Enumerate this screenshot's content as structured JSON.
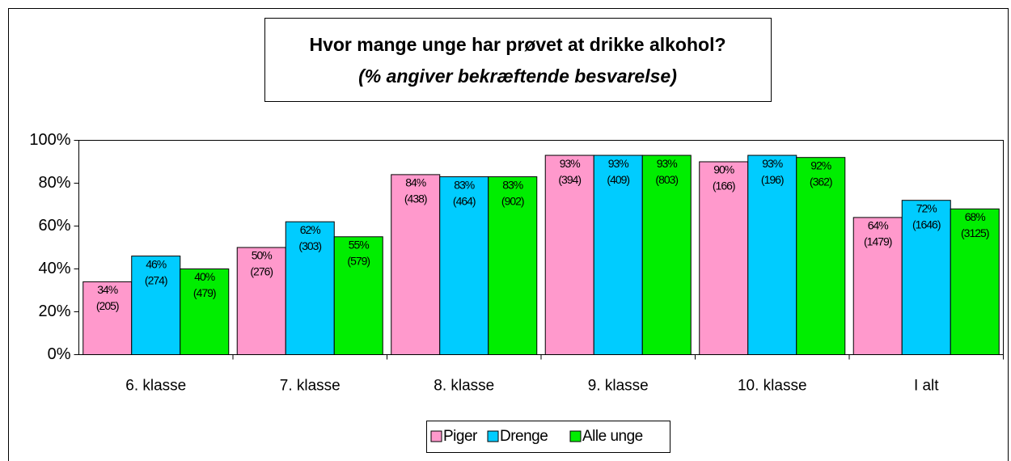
{
  "chart_data": {
    "type": "bar",
    "title": "Hvor mange unge har prøvet at drikke alkohol?",
    "subtitle": "(% angiver bekræftende besvarelse)",
    "categories": [
      "6. klasse",
      "7. klasse",
      "8. klasse",
      "9. klasse",
      "10. klasse",
      "I alt"
    ],
    "series": [
      {
        "name": "Piger",
        "color": "#ff99cc",
        "values": [
          34,
          50,
          84,
          93,
          90,
          64
        ],
        "value_labels": [
          "34%",
          "50%",
          "84%",
          "93%",
          "90%",
          "64%"
        ],
        "count_labels": [
          "(205)",
          "(276)",
          "(438)",
          "(394)",
          "(166)",
          "(1479)"
        ]
      },
      {
        "name": "Drenge",
        "color": "#00ccff",
        "values": [
          46,
          62,
          83,
          93,
          93,
          72
        ],
        "value_labels": [
          "46%",
          "62%",
          "83%",
          "93%",
          "93%",
          "72%"
        ],
        "count_labels": [
          "(274)",
          "(303)",
          "(464)",
          "(409)",
          "(196)",
          "(1646)"
        ]
      },
      {
        "name": "Alle unge",
        "color": "#00ee00",
        "values": [
          40,
          55,
          83,
          93,
          92,
          68
        ],
        "value_labels": [
          "40%",
          "55%",
          "83%",
          "93%",
          "92%",
          "68%"
        ],
        "count_labels": [
          "(479)",
          "(579)",
          "(902)",
          "(803)",
          "(362)",
          "(3125)"
        ]
      }
    ],
    "ylim": [
      0,
      100
    ],
    "yticks": [
      {
        "value": 0,
        "label": "0%"
      },
      {
        "value": 20,
        "label": "20%"
      },
      {
        "value": 40,
        "label": "40%"
      },
      {
        "value": 60,
        "label": "60%"
      },
      {
        "value": 80,
        "label": "80%"
      },
      {
        "value": 100,
        "label": "100%"
      }
    ],
    "legend": "bottom"
  }
}
